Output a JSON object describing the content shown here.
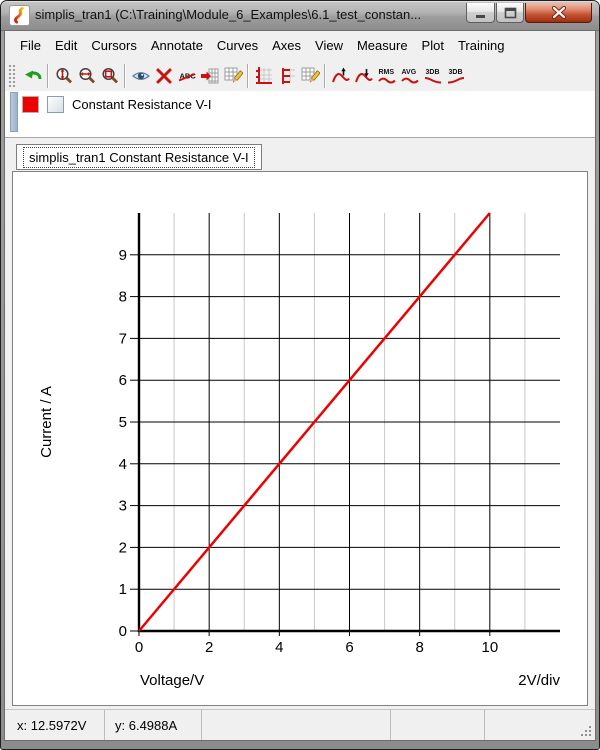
{
  "window": {
    "title": "simplis_tran1 (C:\\Training\\Module_6_Examples\\6.1_test_constan...",
    "app_icon": "simetrix-logo-icon"
  },
  "menu": {
    "items": [
      "File",
      "Edit",
      "Cursors",
      "Annotate",
      "Curves",
      "Axes",
      "View",
      "Measure",
      "Plot",
      "Training"
    ]
  },
  "toolbar": {
    "groups": [
      [
        "undo-zoom"
      ],
      [
        "zoom-y-axis",
        "zoom-x-axis",
        "zoom-rectangle"
      ],
      [
        "show-curve-point",
        "delete-curve",
        "delete-annotation",
        "move-curve",
        "edit-axis"
      ],
      [
        "add-y-axis",
        "add-grid",
        "edit-grid"
      ],
      [
        "measure-maximum",
        "measure-minimum",
        "measure-rms",
        "measure-average",
        "lowpass-3db",
        "highpass-3db"
      ]
    ]
  },
  "legend": {
    "curve_color": "#ee0000",
    "checkbox_checked": false,
    "label": "Constant Resistance V-I"
  },
  "tabs": [
    {
      "label": "simplis_tran1 Constant Resistance V-I",
      "selected": true
    }
  ],
  "chart_data": {
    "type": "line",
    "title": "Constant Resistance V-I",
    "xlabel": "Voltage/V",
    "ylabel": "Current / A",
    "x_div_label": "2V/div",
    "xlim": [
      0,
      12
    ],
    "ylim": [
      0,
      10
    ],
    "x_major_step": 2,
    "x_minor_step": 1,
    "y_major_step": 1,
    "x_tick_labels": [
      0,
      2,
      4,
      6,
      8,
      10
    ],
    "y_tick_labels": [
      0,
      1,
      2,
      3,
      4,
      5,
      6,
      7,
      8,
      9
    ],
    "grid": true,
    "grid_color_major": "#000000",
    "grid_color_minor": "#c9c9c9",
    "axis_color": "#000000",
    "series": [
      {
        "name": "Constant Resistance V-I",
        "color": "#ee0000",
        "x": [
          0,
          10
        ],
        "y": [
          0,
          10
        ]
      }
    ]
  },
  "status_bar": {
    "x_readout": "x: 12.5972V",
    "y_readout": "y: 6.4988A"
  }
}
